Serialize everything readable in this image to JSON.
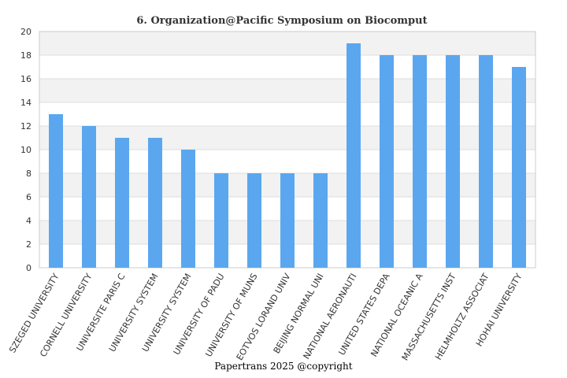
{
  "chart_data": {
    "type": "bar",
    "title": "6. Organization@Pacific Symposium on Biocomput",
    "xlabel": "",
    "ylabel": "",
    "categories": [
      "SZEGED UNIVERSITY",
      "CORNELL UNIVERSITY",
      "UNIVERSITE PARIS C",
      "UNIVERSITY SYSTEM",
      "UNIVERSITY SYSTEM",
      "UNIVERSITY OF PADU",
      "UNIVERSITY OF MUNS",
      "EOTVOS LORAND UNIV",
      "BEIJING NORMAL UNI",
      "NATIONAL AERONAUTI",
      "UNITED STATES DEPA",
      "NATIONAL OCEANIC A",
      "MASSACHUSETTS INST",
      "HELMHOLTZ ASSOCIAT",
      "HOHAI UNIVERSITY"
    ],
    "values": [
      13,
      12,
      11,
      11,
      10,
      8,
      8,
      8,
      8,
      19,
      18,
      18,
      18,
      18,
      17
    ],
    "ylim": [
      0,
      20
    ],
    "yticks": [
      0,
      2,
      4,
      6,
      8,
      10,
      12,
      14,
      16,
      18,
      20
    ],
    "grid": true,
    "legend": "none",
    "colors": {
      "bar": "#5ba7ef",
      "band_light": "#ffffff",
      "band_dark": "#f2f2f2",
      "grid": "#dddddd",
      "axis": "#cccccc"
    }
  },
  "footer": {
    "copyright": "Papertrans 2025 @copyright"
  }
}
